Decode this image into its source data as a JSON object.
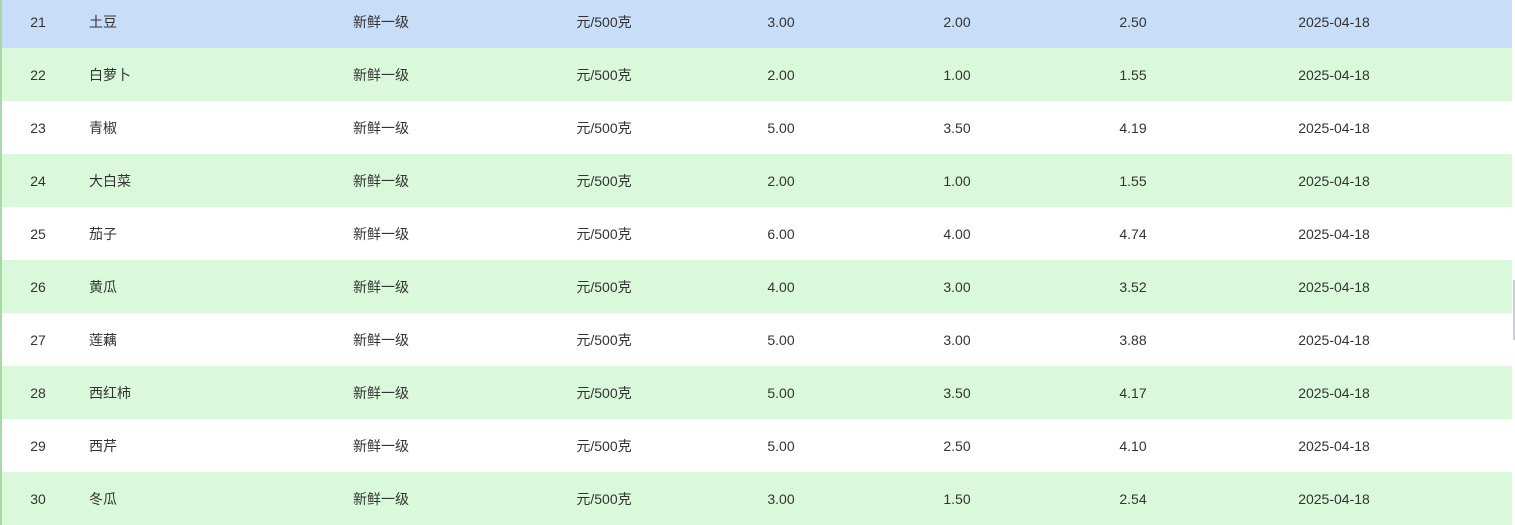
{
  "colors": {
    "selected_row": "#c8ddf7",
    "even_row": "#daf9da",
    "odd_row": "#ffffff"
  },
  "selected_index": 0,
  "rows": [
    {
      "id": "21",
      "name": "土豆",
      "grade": "新鲜一级",
      "unit": "元/500克",
      "max": "3.00",
      "min": "2.00",
      "avg": "2.50",
      "date": "2025-04-18"
    },
    {
      "id": "22",
      "name": "白萝卜",
      "grade": "新鲜一级",
      "unit": "元/500克",
      "max": "2.00",
      "min": "1.00",
      "avg": "1.55",
      "date": "2025-04-18"
    },
    {
      "id": "23",
      "name": "青椒",
      "grade": "新鲜一级",
      "unit": "元/500克",
      "max": "5.00",
      "min": "3.50",
      "avg": "4.19",
      "date": "2025-04-18"
    },
    {
      "id": "24",
      "name": "大白菜",
      "grade": "新鲜一级",
      "unit": "元/500克",
      "max": "2.00",
      "min": "1.00",
      "avg": "1.55",
      "date": "2025-04-18"
    },
    {
      "id": "25",
      "name": "茄子",
      "grade": "新鲜一级",
      "unit": "元/500克",
      "max": "6.00",
      "min": "4.00",
      "avg": "4.74",
      "date": "2025-04-18"
    },
    {
      "id": "26",
      "name": "黄瓜",
      "grade": "新鲜一级",
      "unit": "元/500克",
      "max": "4.00",
      "min": "3.00",
      "avg": "3.52",
      "date": "2025-04-18"
    },
    {
      "id": "27",
      "name": "莲藕",
      "grade": "新鲜一级",
      "unit": "元/500克",
      "max": "5.00",
      "min": "3.00",
      "avg": "3.88",
      "date": "2025-04-18"
    },
    {
      "id": "28",
      "name": "西红柿",
      "grade": "新鲜一级",
      "unit": "元/500克",
      "max": "5.00",
      "min": "3.50",
      "avg": "4.17",
      "date": "2025-04-18"
    },
    {
      "id": "29",
      "name": "西芹",
      "grade": "新鲜一级",
      "unit": "元/500克",
      "max": "5.00",
      "min": "2.50",
      "avg": "4.10",
      "date": "2025-04-18"
    },
    {
      "id": "30",
      "name": "冬瓜",
      "grade": "新鲜一级",
      "unit": "元/500克",
      "max": "3.00",
      "min": "1.50",
      "avg": "2.54",
      "date": "2025-04-18"
    }
  ]
}
